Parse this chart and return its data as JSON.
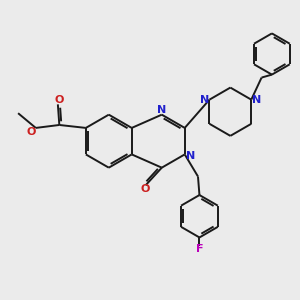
{
  "bg_color": "#ebebeb",
  "bond_color": "#1a1a1a",
  "N_color": "#2020cc",
  "O_color": "#cc2020",
  "F_color": "#bb00bb",
  "bond_width": 1.4,
  "fig_size": [
    3.0,
    3.0
  ],
  "dpi": 100,
  "xlim": [
    0,
    10
  ],
  "ylim": [
    0,
    10
  ]
}
